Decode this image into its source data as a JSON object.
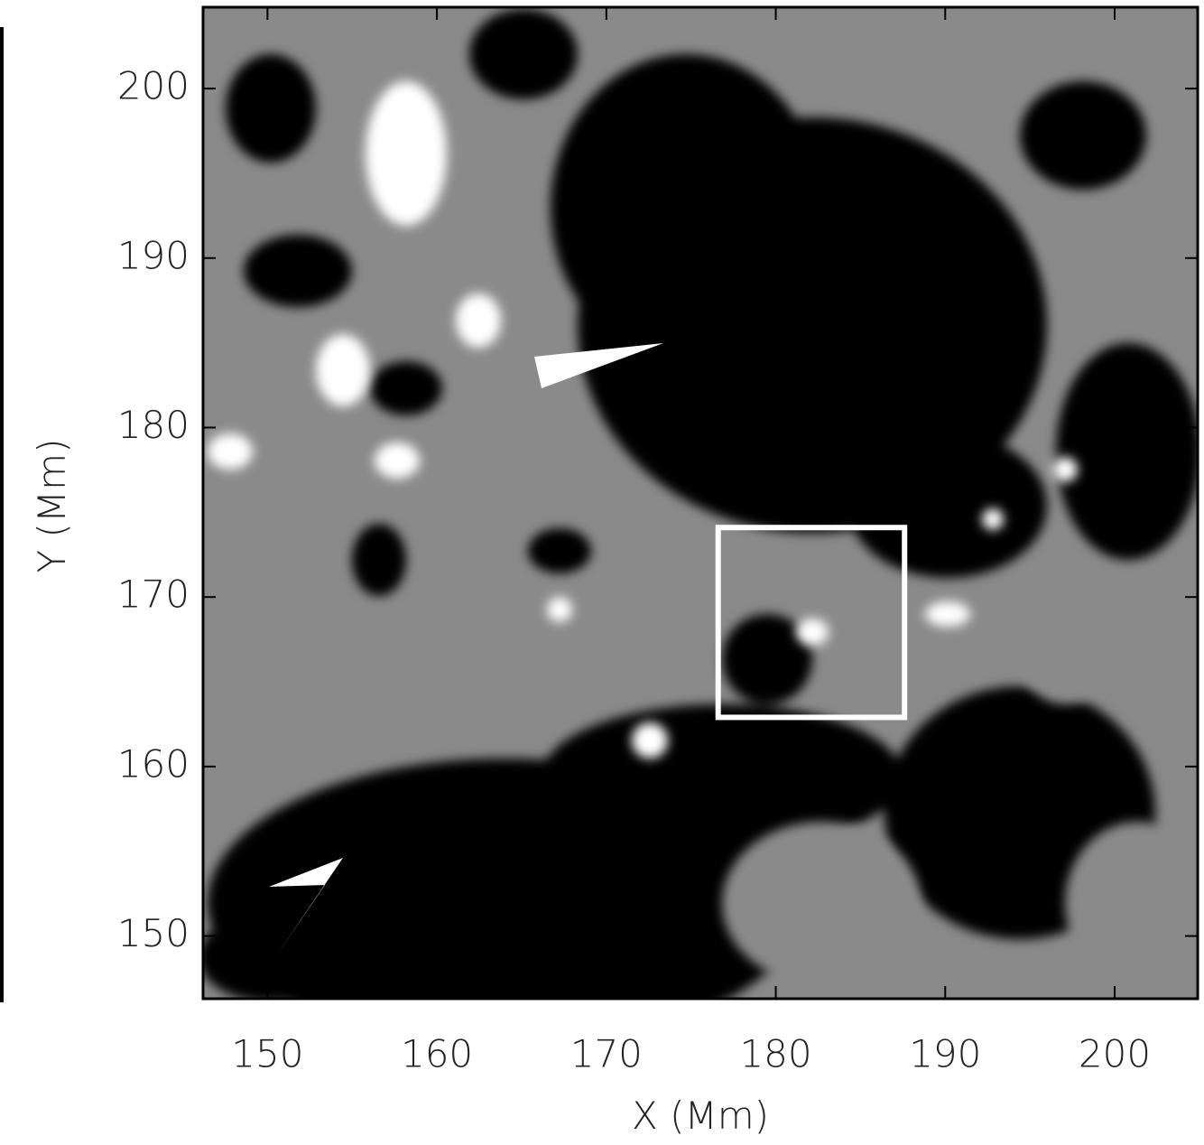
{
  "chart_data": {
    "type": "image",
    "xlabel": "X (Mm)",
    "ylabel": "Y (Mm)",
    "xlim": [
      146.2,
      204.9
    ],
    "ylim": [
      146.3,
      204.8
    ],
    "xticks": [
      150,
      160,
      170,
      180,
      190,
      200
    ],
    "yticks": [
      150,
      160,
      170,
      180,
      190,
      200
    ],
    "box": {
      "x": [
        176.6,
        187.6
      ],
      "y": [
        162.9,
        174.1
      ],
      "color": "#ffffff"
    }
  }
}
